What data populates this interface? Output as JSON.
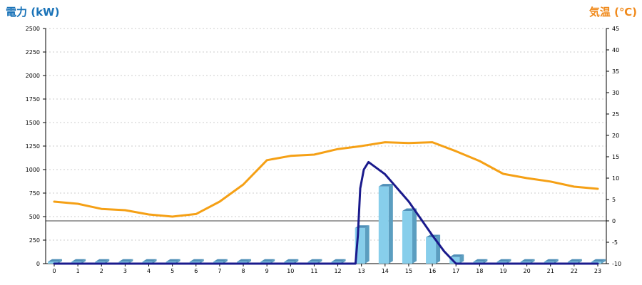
{
  "chart_data": {
    "type": "bar",
    "left_axis_title": "電力 (kW)",
    "right_axis_title": "気温 (℃)",
    "categories": [
      "0",
      "1",
      "2",
      "3",
      "4",
      "5",
      "6",
      "7",
      "8",
      "9",
      "10",
      "11",
      "12",
      "13",
      "14",
      "15",
      "16",
      "17",
      "18",
      "19",
      "20",
      "21",
      "22",
      "23"
    ],
    "y_left": {
      "range": [
        0,
        2500
      ],
      "ticks": [
        0,
        250,
        500,
        750,
        1000,
        1250,
        1500,
        1750,
        2000,
        2250,
        2500
      ]
    },
    "y_right": {
      "range": [
        -10,
        45
      ],
      "ticks": [
        -10,
        -5,
        0,
        5,
        10,
        15,
        20,
        25,
        30,
        35,
        40,
        45
      ]
    },
    "grid": true,
    "series": [
      {
        "kind": "bar3d",
        "axis": "left",
        "color": "#87ceeb",
        "values": [
          20,
          20,
          20,
          20,
          20,
          20,
          20,
          20,
          20,
          20,
          20,
          20,
          20,
          380,
          820,
          560,
          280,
          70,
          20,
          20,
          20,
          20,
          20,
          20
        ]
      },
      {
        "kind": "line",
        "axis": "right",
        "color": "#f5a015",
        "x": [
          0,
          1,
          2,
          3,
          4,
          5,
          6,
          7,
          8,
          9,
          10,
          11,
          12,
          13,
          14,
          15,
          16,
          17,
          18,
          19,
          20,
          21,
          22,
          23
        ],
        "values": [
          4.5,
          4.0,
          2.8,
          2.5,
          1.5,
          1.0,
          1.6,
          4.5,
          8.5,
          14.2,
          15.2,
          15.5,
          16.8,
          17.5,
          18.4,
          18.2,
          18.4,
          16.3,
          14.0,
          11.0,
          10.0,
          9.2,
          8.0,
          7.5
        ]
      },
      {
        "kind": "line",
        "axis": "left",
        "color": "#1a1a8c",
        "x": [
          0,
          12.75,
          12.85,
          12.95,
          13.1,
          13.3,
          14,
          15,
          16,
          16.5,
          17,
          23
        ],
        "values": [
          0,
          0,
          300,
          800,
          1000,
          1080,
          950,
          660,
          300,
          130,
          0,
          0
        ]
      }
    ]
  }
}
